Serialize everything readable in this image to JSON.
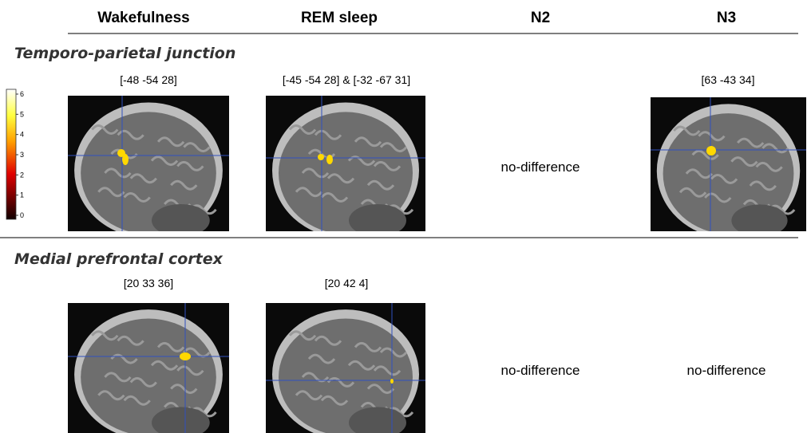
{
  "columns": [
    "Wakefulness",
    "REM sleep",
    "N2",
    "N3"
  ],
  "rows": [
    {
      "title": "Temporo-parietal junction",
      "cells": [
        {
          "label": "[-48 -54 28]"
        },
        {
          "label": "[-45 -54 28] & [-32 -67 31]"
        },
        {
          "text": "no-difference"
        },
        {
          "label": "[63 -43 34]"
        }
      ]
    },
    {
      "title": "Medial prefrontal cortex",
      "cells": [
        {
          "label": "[20 33 36]"
        },
        {
          "label": "[20 42 4]"
        },
        {
          "text": "no-difference"
        },
        {
          "text": "no-difference"
        }
      ]
    }
  ],
  "colorbar": {
    "ticks": [
      6,
      5,
      4,
      3,
      2,
      1,
      0
    ]
  }
}
